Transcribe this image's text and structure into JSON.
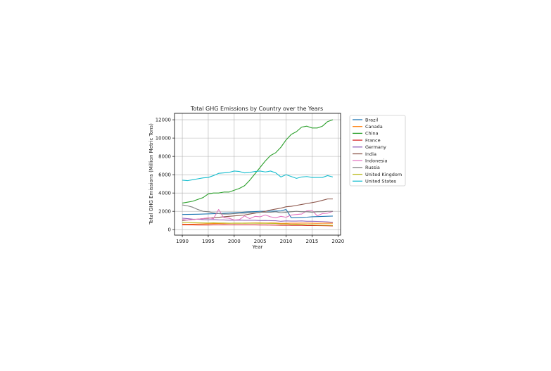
{
  "chart_data": {
    "type": "line",
    "title": "Total GHG Emissions by Country over the Years",
    "xlabel": "Year",
    "ylabel": "Total GHG Emissions (Million Metric Tons)",
    "xlim": [
      1988.5,
      2020.5
    ],
    "ylim": [
      -600,
      12700
    ],
    "x_ticks": [
      1990,
      1995,
      2000,
      2005,
      2010,
      2015,
      2020
    ],
    "y_ticks": [
      0,
      2000,
      4000,
      6000,
      8000,
      10000,
      12000
    ],
    "grid": true,
    "legend_position": "outside-right",
    "x": [
      1990,
      1991,
      1992,
      1993,
      1994,
      1995,
      1996,
      1997,
      1998,
      1999,
      2000,
      2001,
      2002,
      2003,
      2004,
      2005,
      2006,
      2007,
      2008,
      2009,
      2010,
      2011,
      2012,
      2013,
      2014,
      2015,
      2016,
      2017,
      2018,
      2019
    ],
    "series": [
      {
        "name": "Brazil",
        "color": "#1f77b4",
        "values": [
          1650,
          1660,
          1670,
          1680,
          1700,
          1720,
          1740,
          1760,
          1790,
          1820,
          1850,
          1880,
          1910,
          1940,
          1970,
          2000,
          2010,
          2020,
          2030,
          2050,
          2200,
          1300,
          1320,
          1340,
          1360,
          1400,
          1420,
          1440,
          1460,
          1480
        ]
      },
      {
        "name": "Canada",
        "color": "#ff7f0e",
        "values": [
          600,
          590,
          600,
          610,
          620,
          640,
          660,
          670,
          680,
          690,
          710,
          700,
          710,
          720,
          730,
          730,
          720,
          730,
          720,
          680,
          690,
          700,
          700,
          710,
          710,
          700,
          690,
          700,
          710,
          700
        ]
      },
      {
        "name": "China",
        "color": "#2ca02c",
        "values": [
          2900,
          3000,
          3100,
          3300,
          3500,
          3900,
          4000,
          4000,
          4100,
          4100,
          4300,
          4500,
          4800,
          5400,
          6100,
          6800,
          7500,
          8100,
          8400,
          9000,
          9800,
          10400,
          10700,
          11200,
          11300,
          11100,
          11100,
          11300,
          11800,
          12000
        ]
      },
      {
        "name": "France",
        "color": "#d62728",
        "values": [
          530,
          530,
          520,
          510,
          510,
          510,
          520,
          520,
          530,
          520,
          520,
          520,
          520,
          520,
          520,
          510,
          510,
          500,
          490,
          470,
          480,
          460,
          460,
          460,
          440,
          440,
          440,
          430,
          420,
          400
        ]
      },
      {
        "name": "Germany",
        "color": "#9467bd",
        "values": [
          1250,
          1200,
          1150,
          1130,
          1100,
          1080,
          1100,
          1070,
          1060,
          1030,
          1030,
          1040,
          1020,
          1020,
          1020,
          990,
          1000,
          980,
          970,
          910,
          950,
          930,
          930,
          950,
          910,
          910,
          900,
          880,
          850,
          800
        ]
      },
      {
        "name": "India",
        "color": "#8c564b",
        "values": [
          1000,
          1050,
          1100,
          1150,
          1200,
          1250,
          1300,
          1350,
          1400,
          1450,
          1500,
          1550,
          1600,
          1700,
          1800,
          1900,
          2000,
          2150,
          2250,
          2350,
          2500,
          2550,
          2650,
          2750,
          2850,
          2950,
          3050,
          3200,
          3350,
          3350
        ]
      },
      {
        "name": "Indonesia",
        "color": "#e377c2",
        "values": [
          1100,
          1050,
          1100,
          1150,
          1200,
          1300,
          1200,
          2200,
          1300,
          1250,
          1050,
          1100,
          1500,
          1200,
          1450,
          1400,
          1600,
          1400,
          1300,
          1450,
          1350,
          1600,
          1650,
          1700,
          2050,
          2100,
          1500,
          1750,
          1800,
          2000
        ]
      },
      {
        "name": "Russia",
        "color": "#7f7f7f",
        "values": [
          2700,
          2600,
          2450,
          2200,
          2000,
          1950,
          1850,
          1750,
          1700,
          1700,
          1750,
          1800,
          1800,
          1850,
          1850,
          1900,
          1900,
          1900,
          1950,
          1850,
          1900,
          1950,
          2000,
          1950,
          1950,
          1900,
          1950,
          1950,
          2000,
          2000
        ]
      },
      {
        "name": "United Kingdom",
        "color": "#bcbd22",
        "values": [
          780,
          780,
          760,
          740,
          730,
          720,
          740,
          720,
          720,
          700,
          700,
          710,
          690,
          700,
          700,
          690,
          690,
          680,
          670,
          610,
          630,
          580,
          590,
          580,
          540,
          520,
          500,
          490,
          480,
          460
        ]
      },
      {
        "name": "United States",
        "color": "#17becf",
        "values": [
          5400,
          5350,
          5450,
          5550,
          5650,
          5700,
          5900,
          6150,
          6200,
          6250,
          6400,
          6350,
          6200,
          6250,
          6350,
          6400,
          6300,
          6400,
          6200,
          5750,
          6000,
          5800,
          5600,
          5750,
          5800,
          5700,
          5700,
          5700,
          5900,
          5750
        ]
      }
    ]
  }
}
